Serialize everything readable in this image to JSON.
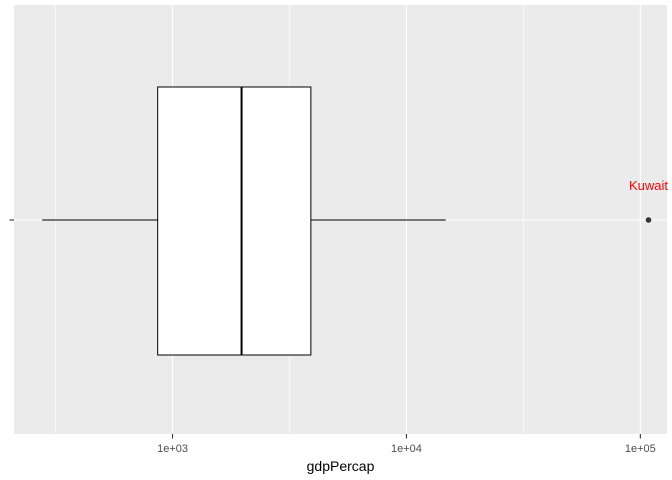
{
  "chart_data": {
    "type": "box",
    "xlabel": "gdpPercap",
    "ylabel": "",
    "x_scale": "log10",
    "xlim": [
      210,
      130000
    ],
    "x_ticks": [
      1000,
      10000,
      100000
    ],
    "x_tick_labels": [
      "1e+03",
      "1e+04",
      "1e+05"
    ],
    "grid": true,
    "box": {
      "whisker_low": 277,
      "q1": 864,
      "median": 1973,
      "q3": 3903,
      "whisker_high": 14722
    },
    "outliers": [
      {
        "x": 108382,
        "label": "Kuwait"
      }
    ],
    "colors": {
      "panel_background": "#ebebeb",
      "grid": "#ffffff",
      "box_fill": "#ffffff",
      "box_line": "#000000",
      "label": "#ff0000"
    }
  }
}
